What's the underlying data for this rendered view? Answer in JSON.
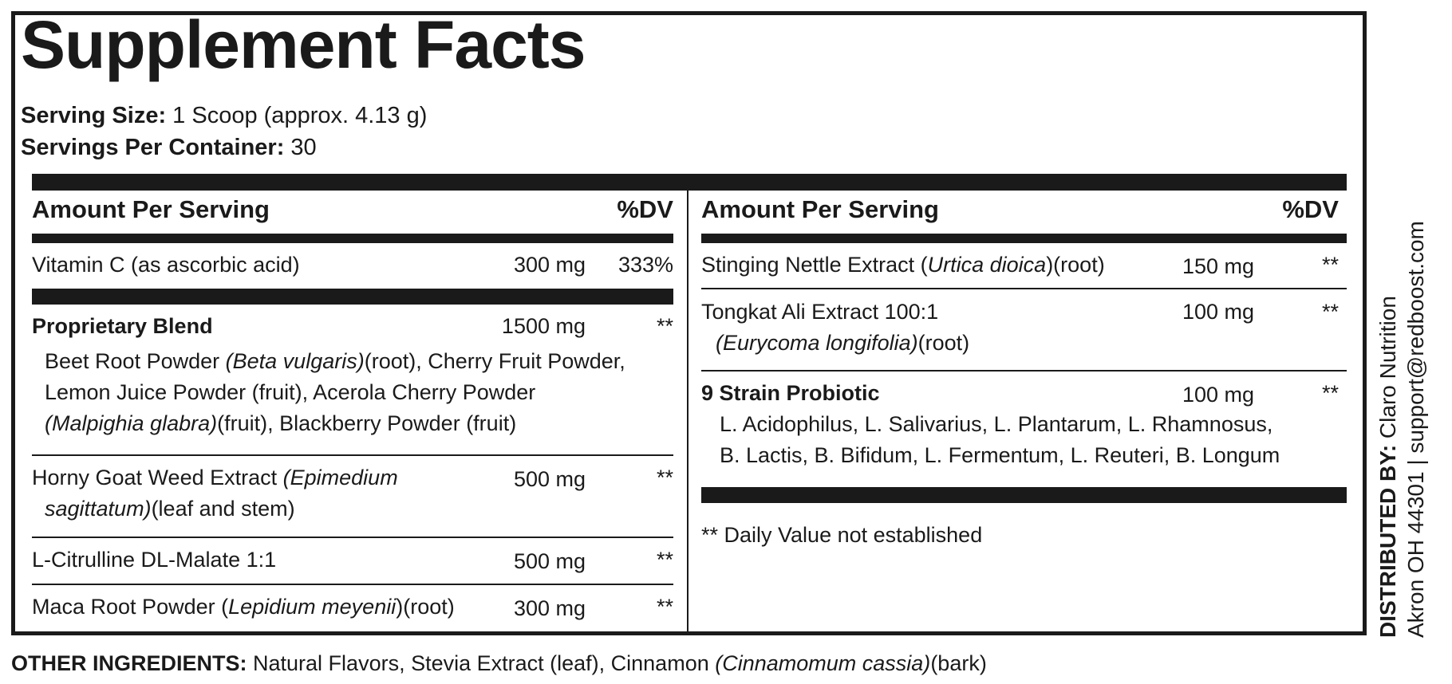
{
  "title": "Supplement Facts",
  "serving": {
    "size_label": "Serving Size:",
    "size_value": " 1 Scoop (approx. 4.13 g)",
    "per_container_label": "Servings Per Container:",
    "per_container_value": " 30"
  },
  "header": {
    "amount_label": "Amount Per Serving",
    "dv_label": "%DV"
  },
  "left": {
    "vitamin_c": {
      "name": "Vitamin C (as ascorbic acid)",
      "amount": "300 mg",
      "dv": "333%"
    },
    "blend": {
      "name": "Proprietary Blend",
      "amount": "1500 mg",
      "dv": "**",
      "line1_a": "Beet Root Powder ",
      "line1_b": "(Beta vulgaris)",
      "line1_c": "(root), Cherry Fruit Powder,",
      "line2": "Lemon Juice Powder (fruit), Acerola Cherry Powder",
      "line3_a": "(Malpighia glabra)",
      "line3_b": "(fruit), Blackberry Powder (fruit)"
    },
    "goat_weed": {
      "name_a": "Horny Goat Weed Extract ",
      "name_b": "(Epimedium",
      "line2_a": "sagittatum)",
      "line2_b": "(leaf and stem)",
      "amount": "500 mg",
      "dv": "**"
    },
    "citrulline": {
      "name": "L-Citrulline DL-Malate 1:1",
      "amount": "500 mg",
      "dv": "**"
    },
    "maca": {
      "name_a": "Maca Root Powder (",
      "name_b": "Lepidium meyenii",
      "name_c": ")(root)",
      "amount": "300 mg",
      "dv": "**"
    }
  },
  "right": {
    "nettle": {
      "name_a": "Stinging Nettle Extract (",
      "name_b": "Urtica dioica",
      "name_c": ")(root)",
      "amount": "150 mg",
      "dv": "**"
    },
    "tongkat": {
      "name": "Tongkat Ali Extract 100:1",
      "line2_a": "(Eurycoma longifolia)",
      "line2_b": "(root)",
      "amount": "100 mg",
      "dv": "**"
    },
    "probiotic": {
      "name": "9 Strain Probiotic",
      "amount": "100 mg",
      "dv": "**",
      "line1": "L. Acidophilus, L. Salivarius, L. Plantarum, L. Rhamnosus,",
      "line2": "B. Lactis, B. Bifidum, L. Fermentum, L. Reuteri, B. Longum"
    },
    "footnote": "** Daily Value not established"
  },
  "distributor": {
    "label": "DISTRIBUTED BY:",
    "name": " Claro Nutrition",
    "address": "Akron OH 44301 | support@redboost.com"
  },
  "other_ingredients": {
    "label": "OTHER INGREDIENTS:",
    "text_a": " Natural Flavors, Stevia Extract (leaf), Cinnamon ",
    "text_b": "(Cinnamomum cassia)",
    "text_c": "(bark)"
  }
}
